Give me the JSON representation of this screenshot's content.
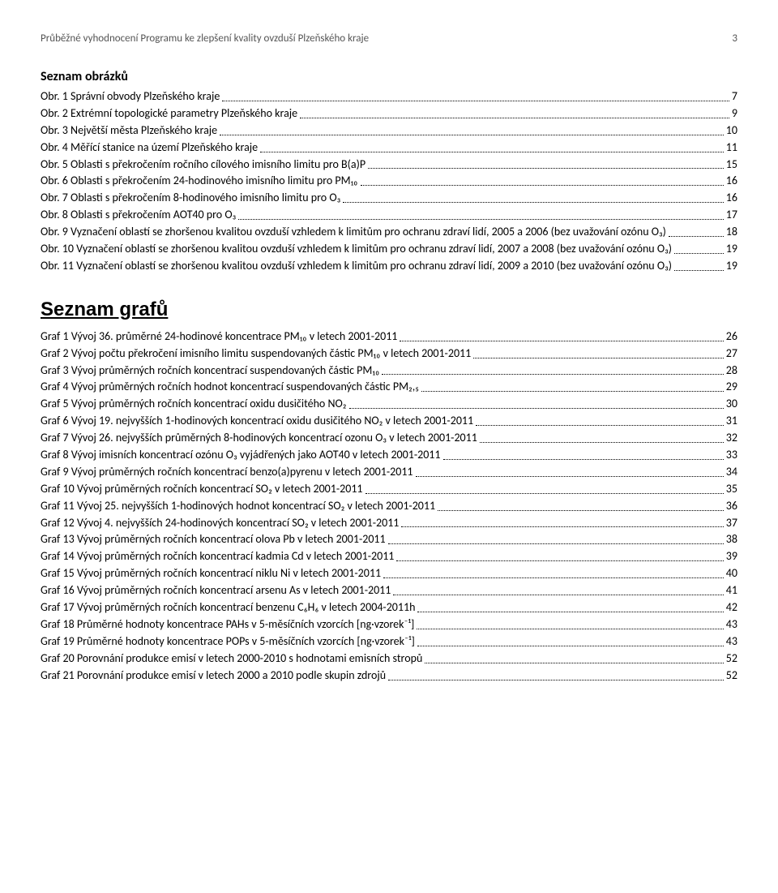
{
  "header": {
    "title": "Průběžné vyhodnocení Programu ke zlepšení kvality ovzduší Plzeňského kraje",
    "page": "3"
  },
  "section1": {
    "title": "Seznam obrázků",
    "items": [
      {
        "label": "Obr. 1 Správní obvody Plzeňského kraje",
        "page": "7"
      },
      {
        "label": "Obr. 2 Extrémní topologické parametry Plzeňského kraje",
        "page": "9"
      },
      {
        "label": "Obr. 3 Největší města Plzeňského kraje",
        "page": "10"
      },
      {
        "label": "Obr. 4 Měřící stanice na území Plzeňského kraje",
        "page": "11"
      },
      {
        "label": "Obr. 5 Oblasti s překročením ročního cílového imisního limitu pro B(a)P",
        "page": "15"
      },
      {
        "label": "Obr. 6 Oblasti s překročením 24-hodinového imisního limitu pro PM₁₀",
        "page": "16"
      },
      {
        "label": "Obr. 7 Oblasti s překročením 8-hodinového imisního limitu pro O₃",
        "page": "16"
      },
      {
        "label": "Obr. 8 Oblasti s překročením AOT40 pro O₃",
        "page": "17"
      },
      {
        "label": "Obr. 9 Vyznačení oblastí se zhoršenou kvalitou ovzduší vzhledem k limitům pro ochranu zdraví lidí, 2005 a 2006 (bez uvažování ozónu O₃)",
        "page": "18"
      },
      {
        "label": "Obr. 10 Vyznačení oblastí se zhoršenou kvalitou ovzduší vzhledem k limitům pro ochranu zdraví lidí, 2007 a 2008 (bez uvažování ozónu O₃)",
        "page": "19"
      },
      {
        "label": "Obr. 11 Vyznačení oblastí se zhoršenou kvalitou ovzduší vzhledem k limitům pro ochranu zdraví lidí, 2009 a 2010 (bez uvažování ozónu O₃)",
        "page": "19"
      }
    ]
  },
  "section2": {
    "title": "Seznam grafů",
    "items": [
      {
        "label": "Graf 1 Vývoj 36. průměrné 24-hodinové koncentrace PM₁₀ v letech 2001-2011",
        "page": "26"
      },
      {
        "label": "Graf 2 Vývoj počtu překročení imisního limitu suspendovaných částic PM₁₀ v letech 2001-2011",
        "page": "27"
      },
      {
        "label": "Graf 3 Vývoj průměrných ročních koncentrací suspendovaných částic PM₁₀",
        "page": "28"
      },
      {
        "label": "Graf 4 Vývoj průměrných ročních hodnot koncentrací suspendovaných částic PM₂,₅",
        "page": "29"
      },
      {
        "label": "Graf 5 Vývoj průměrných ročních koncentrací oxidu dusičitého NO₂",
        "page": "30"
      },
      {
        "label": "Graf 6 Vývoj 19. nejvyšších 1-hodinových koncentrací oxidu dusičitého NO₂ v letech 2001-2011",
        "page": "31"
      },
      {
        "label": "Graf 7 Vývoj 26. nejvyšších průměrných 8-hodinových koncentrací ozonu O₃ v letech 2001-2011",
        "page": "32"
      },
      {
        "label": "Graf 8 Vývoj imisních koncentrací ozónu O₃ vyjádřených jako AOT40 v letech 2001-2011",
        "page": "33"
      },
      {
        "label": "Graf 9 Vývoj průměrných ročních koncentrací benzo(a)pyrenu v letech 2001-2011",
        "page": "34"
      },
      {
        "label": "Graf 10 Vývoj průměrných ročních koncentrací SO₂ v letech 2001-2011",
        "page": "35"
      },
      {
        "label": "Graf 11 Vývoj 25. nejvyšších 1-hodinových hodnot koncentrací SO₂ v letech 2001-2011",
        "page": "36"
      },
      {
        "label": "Graf 12 Vývoj 4. nejvyšších 24-hodinových koncentrací SO₂ v letech 2001-2011",
        "page": "37"
      },
      {
        "label": "Graf 13 Vývoj průměrných ročních koncentrací olova Pb v letech 2001-2011",
        "page": "38"
      },
      {
        "label": "Graf 14 Vývoj průměrných ročních koncentrací kadmia Cd v letech 2001-2011",
        "page": "39"
      },
      {
        "label": "Graf 15 Vývoj průměrných ročních koncentrací niklu Ni v letech 2001-2011",
        "page": "40"
      },
      {
        "label": "Graf 16 Vývoj průměrných ročních koncentrací arsenu As v letech 2001-2011",
        "page": "41"
      },
      {
        "label": "Graf 17 Vývoj průměrných ročních koncentrací benzenu C₆H₆ v letech 2004-2011h",
        "page": "42"
      },
      {
        "label": "Graf 18 Průměrné hodnoty koncentrace PAHs v 5-měsíčních vzorcích [ng·vzorek⁻¹]",
        "page": "43"
      },
      {
        "label": "Graf 19 Průměrné hodnoty koncentrace POPs v 5-měsíčních vzorcích [ng·vzorek⁻¹]",
        "page": "43"
      },
      {
        "label": "Graf 20 Porovnání produkce emisí v letech 2000-2010 s hodnotami emisních stropů",
        "page": "52"
      },
      {
        "label": "Graf 21 Porovnání produkce emisí v letech 2000 a 2010 podle skupin zdrojů",
        "page": "52"
      }
    ]
  }
}
